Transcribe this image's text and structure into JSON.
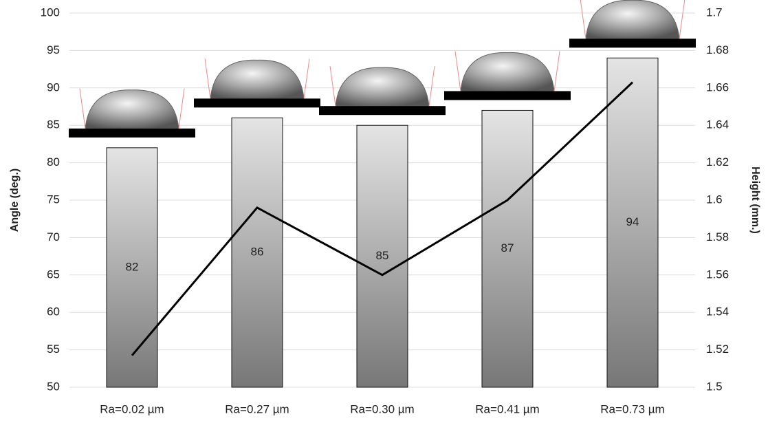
{
  "chart_data": {
    "type": "bar",
    "categories": [
      "Ra=0.02 µm",
      "Ra=0.27 µm",
      "Ra=0.30 µm",
      "Ra=0.41 µm",
      "Ra=0.73 µm"
    ],
    "series": [
      {
        "type": "bar",
        "color": "#9a9a9a",
        "values": [
          82,
          86,
          85,
          87,
          94
        ]
      },
      {
        "type": "line",
        "axis": "y2",
        "color": "#000000",
        "values": [
          1.517,
          1.596,
          1.56,
          1.6,
          1.663
        ]
      }
    ],
    "y_label": "Angle (deg.)",
    "y2_label": "Height (mm.)",
    "ylim": [
      50,
      100
    ],
    "yticks": [
      50,
      55,
      60,
      65,
      70,
      75,
      80,
      85,
      90,
      95,
      100
    ],
    "y2lim": [
      1.5,
      1.7
    ],
    "y2ticks": [
      1.5,
      1.52,
      1.54,
      1.56,
      1.58,
      1.6,
      1.62,
      1.64,
      1.66,
      1.68,
      1.7
    ],
    "grid": true
  }
}
